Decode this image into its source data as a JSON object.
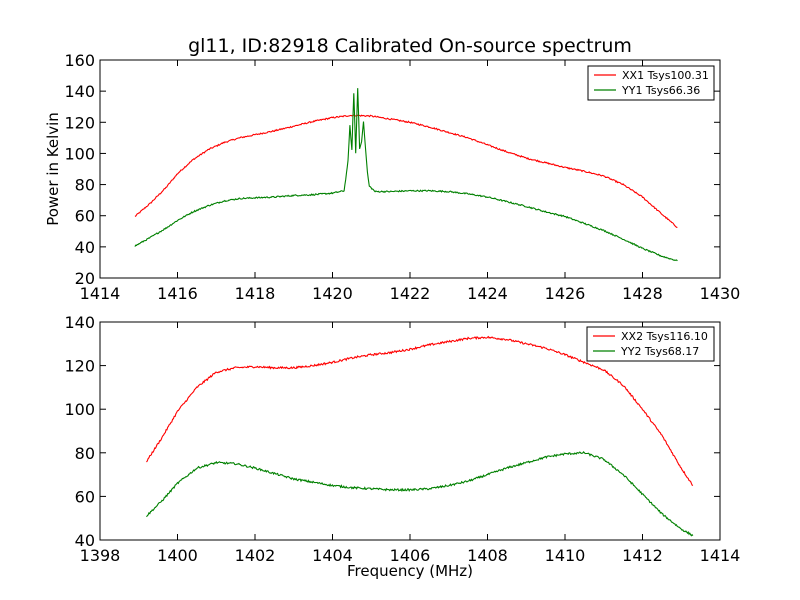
{
  "figure": {
    "title": "gl11, ID:82918 Calibrated On-source spectrum",
    "ylabel": "Power in Kelvin",
    "xlabel": "Frequency (MHz)"
  },
  "chart_data": [
    {
      "type": "line",
      "title": "gl11, ID:82918 Calibrated On-source spectrum",
      "xlabel": "",
      "ylabel": "Power in Kelvin",
      "xlim": [
        1414,
        1430
      ],
      "ylim": [
        20,
        160
      ],
      "xticks": [
        1414,
        1416,
        1418,
        1420,
        1422,
        1424,
        1426,
        1428,
        1430
      ],
      "yticks": [
        20,
        40,
        60,
        80,
        100,
        120,
        140,
        160
      ],
      "legend": "top-right",
      "grid": false,
      "series": [
        {
          "name": "XX1 Tsys100.31",
          "color": "#ff0000",
          "x": [
            1414.9,
            1415.3,
            1415.7,
            1416.0,
            1416.4,
            1416.8,
            1417.2,
            1417.6,
            1418.0,
            1418.5,
            1419.0,
            1419.5,
            1420.0,
            1420.5,
            1421.0,
            1421.5,
            1422.0,
            1422.5,
            1423.0,
            1423.5,
            1424.0,
            1424.5,
            1425.0,
            1425.5,
            1426.0,
            1426.5,
            1427.0,
            1427.5,
            1428.0,
            1428.5,
            1428.9
          ],
          "y": [
            59.5,
            68,
            78,
            87,
            96,
            102.5,
            107,
            110,
            112,
            114.5,
            117.5,
            120.5,
            123,
            124.5,
            124,
            122,
            120,
            117,
            113.5,
            110,
            105.5,
            101,
            97,
            94,
            91,
            88.5,
            85.5,
            80,
            72,
            61,
            52.5
          ]
        },
        {
          "name": "YY1 Tsys66.36",
          "color": "#008000",
          "x": [
            1414.9,
            1415.3,
            1415.7,
            1416.0,
            1416.4,
            1416.8,
            1417.2,
            1417.6,
            1418.0,
            1418.5,
            1419.0,
            1419.5,
            1420.0,
            1420.3,
            1420.4,
            1420.45,
            1420.5,
            1420.55,
            1420.6,
            1420.65,
            1420.7,
            1420.75,
            1420.8,
            1420.85,
            1420.9,
            1420.95,
            1421.1,
            1421.5,
            1422.0,
            1422.5,
            1423.0,
            1423.5,
            1424.0,
            1424.5,
            1425.0,
            1425.5,
            1426.0,
            1426.5,
            1427.0,
            1427.5,
            1428.0,
            1428.5,
            1428.9
          ],
          "y": [
            40.5,
            46,
            52,
            57,
            62.5,
            66.5,
            69.5,
            71,
            71.5,
            72,
            73,
            73.5,
            74.5,
            76,
            95,
            118,
            102,
            139,
            100,
            142,
            103,
            108,
            120,
            104,
            88,
            79,
            75.5,
            75.5,
            76,
            76,
            75.5,
            74,
            72,
            69,
            66,
            62.5,
            59.5,
            55,
            50.5,
            45,
            39,
            34,
            31
          ]
        }
      ]
    },
    {
      "type": "line",
      "title": "",
      "xlabel": "Frequency (MHz)",
      "ylabel": "",
      "xlim": [
        1398,
        1414
      ],
      "ylim": [
        40,
        140
      ],
      "xticks": [
        1398,
        1400,
        1402,
        1404,
        1406,
        1408,
        1410,
        1412,
        1414
      ],
      "yticks": [
        40,
        60,
        80,
        100,
        120,
        140
      ],
      "legend": "top-right",
      "grid": false,
      "series": [
        {
          "name": "XX2 Tsys116.10",
          "color": "#ff0000",
          "x": [
            1399.2,
            1399.6,
            1400.0,
            1400.5,
            1401.0,
            1401.5,
            1402.0,
            1402.5,
            1403.0,
            1403.5,
            1404.0,
            1404.5,
            1405.0,
            1405.5,
            1406.0,
            1406.5,
            1407.0,
            1407.5,
            1408.0,
            1408.5,
            1409.0,
            1409.5,
            1410.0,
            1410.5,
            1411.0,
            1411.5,
            1412.0,
            1412.5,
            1413.0,
            1413.3
          ],
          "y": [
            76,
            87,
            99,
            110,
            117,
            119,
            119.5,
            119,
            119,
            120,
            121.5,
            123.5,
            125,
            126,
            127.5,
            129.5,
            131,
            132.5,
            133,
            132,
            130,
            128,
            125,
            121.5,
            118,
            111,
            100,
            88,
            73,
            65
          ]
        },
        {
          "name": "YY2 Tsys68.17",
          "color": "#008000",
          "x": [
            1399.2,
            1399.6,
            1400.0,
            1400.5,
            1401.0,
            1401.5,
            1402.0,
            1402.5,
            1403.0,
            1403.5,
            1404.0,
            1404.5,
            1405.0,
            1405.5,
            1406.0,
            1406.5,
            1407.0,
            1407.5,
            1408.0,
            1408.5,
            1409.0,
            1409.5,
            1410.0,
            1410.5,
            1411.0,
            1411.5,
            1412.0,
            1412.5,
            1413.0,
            1413.3
          ],
          "y": [
            51,
            58,
            66,
            73,
            75.5,
            75,
            73,
            70.5,
            68,
            66.5,
            65,
            64,
            63.5,
            63,
            63,
            63.5,
            65,
            67,
            70,
            73,
            75.5,
            78,
            79.5,
            80,
            77,
            70,
            61,
            52,
            45,
            42
          ]
        }
      ]
    }
  ]
}
